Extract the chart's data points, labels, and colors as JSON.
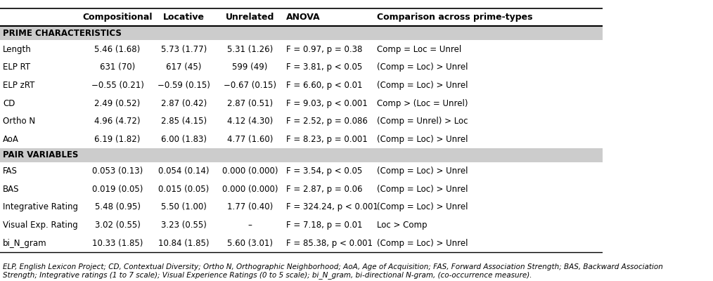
{
  "headers": [
    "",
    "Compositional",
    "Locative",
    "Unrelated",
    "ANOVA",
    "Comparison across prime-types"
  ],
  "section1_label": "PRIME CHARACTERISTICS",
  "section2_label": "PAIR VARIABLES",
  "rows_section1": [
    [
      "Length",
      "5.46 (1.68)",
      "5.73 (1.77)",
      "5.31 (1.26)",
      "F = 0.97, p = 0.38",
      "Comp = Loc = Unrel"
    ],
    [
      "ELP RT",
      "631 (70)",
      "617 (45)",
      "599 (49)",
      "F = 3.81, p < 0.05",
      "(Comp = Loc) > Unrel"
    ],
    [
      "ELP zRT",
      "−0.55 (0.21)",
      "−0.59 (0.15)",
      "−0.67 (0.15)",
      "F = 6.60, p < 0.01",
      "(Comp = Loc) > Unrel"
    ],
    [
      "CD",
      "2.49 (0.52)",
      "2.87 (0.42)",
      "2.87 (0.51)",
      "F = 9.03, p < 0.001",
      "Comp > (Loc = Unrel)"
    ],
    [
      "Ortho N",
      "4.96 (4.72)",
      "2.85 (4.15)",
      "4.12 (4.30)",
      "F = 2.52, p = 0.086",
      "(Comp = Unrel) > Loc"
    ],
    [
      "AoA",
      "6.19 (1.82)",
      "6.00 (1.83)",
      "4.77 (1.60)",
      "F = 8.23, p = 0.001",
      "(Comp = Loc) > Unrel"
    ]
  ],
  "rows_section2": [
    [
      "FAS",
      "0.053 (0.13)",
      "0.054 (0.14)",
      "0.000 (0.000)",
      "F = 3.54, p < 0.05",
      "(Comp = Loc) > Unrel"
    ],
    [
      "BAS",
      "0.019 (0.05)",
      "0.015 (0.05)",
      "0.000 (0.000)",
      "F = 2.87, p = 0.06",
      "(Comp = Loc) > Unrel"
    ],
    [
      "Integrative Rating",
      "5.48 (0.95)",
      "5.50 (1.00)",
      "1.77 (0.40)",
      "F = 324.24, p < 0.001",
      "(Comp = Loc) > Unrel"
    ],
    [
      "Visual Exp. Rating",
      "3.02 (0.55)",
      "3.23 (0.55)",
      "–",
      "F = 7.18, p = 0.01",
      "Loc > Comp"
    ],
    [
      "bi_N_gram",
      "10.33 (1.85)",
      "10.84 (1.85)",
      "5.60 (3.01)",
      "F = 85.38, p < 0.001",
      "(Comp = Loc) > Unrel"
    ]
  ],
  "footnote": "ELP, English Lexicon Project; CD, Contextual Diversity; Ortho N, Orthographic Neighborhood; AoA, Age of Acquisition; FAS, Forward Association Strength; BAS, Backward Association\nStrength; Integrative ratings (1 to 7 scale); Visual Experience Ratings (0 to 5 scale); bi_N_gram, bi-directional N-gram, (co-occurrence measure).",
  "header_bg": "#ffffff",
  "section_bg": "#d3d3d3",
  "row_bg": "#ffffff",
  "border_color": "#000000",
  "header_fontsize": 9,
  "body_fontsize": 8.5,
  "footnote_fontsize": 7.5
}
